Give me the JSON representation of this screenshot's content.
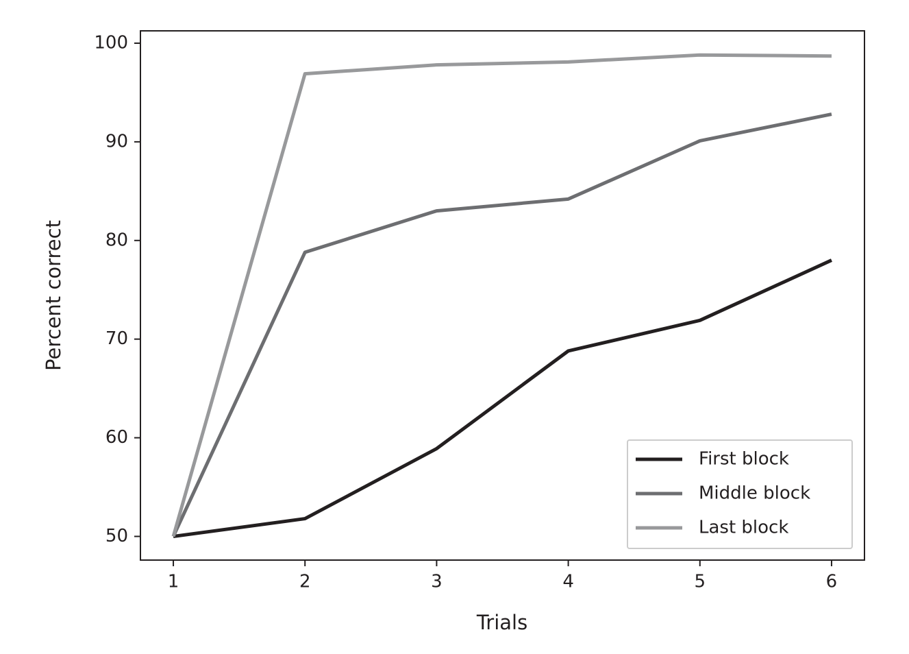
{
  "chart_data": {
    "type": "line",
    "x_label": "Trials",
    "y_label": "Percent correct",
    "x": [
      1,
      2,
      3,
      4,
      5,
      6
    ],
    "series": [
      {
        "name": "First block",
        "color": "#231f20",
        "values": [
          50,
          51.8,
          58.9,
          68.8,
          71.9,
          78
        ]
      },
      {
        "name": "Middle block",
        "color": "#6d6e71",
        "values": [
          50,
          78.8,
          83,
          84.2,
          90.1,
          92.8
        ]
      },
      {
        "name": "Last block",
        "color": "#98999b",
        "values": [
          50,
          96.9,
          97.8,
          98.1,
          98.8,
          98.7
        ]
      }
    ],
    "xlim": [
      0.75,
      6.25
    ],
    "xticks": [
      1,
      2,
      3,
      4,
      5,
      6
    ],
    "ylim": [
      47.6,
      101.25
    ],
    "yticks": [
      50,
      60,
      70,
      80,
      90,
      100
    ],
    "grid": false,
    "legend": "lower right"
  }
}
